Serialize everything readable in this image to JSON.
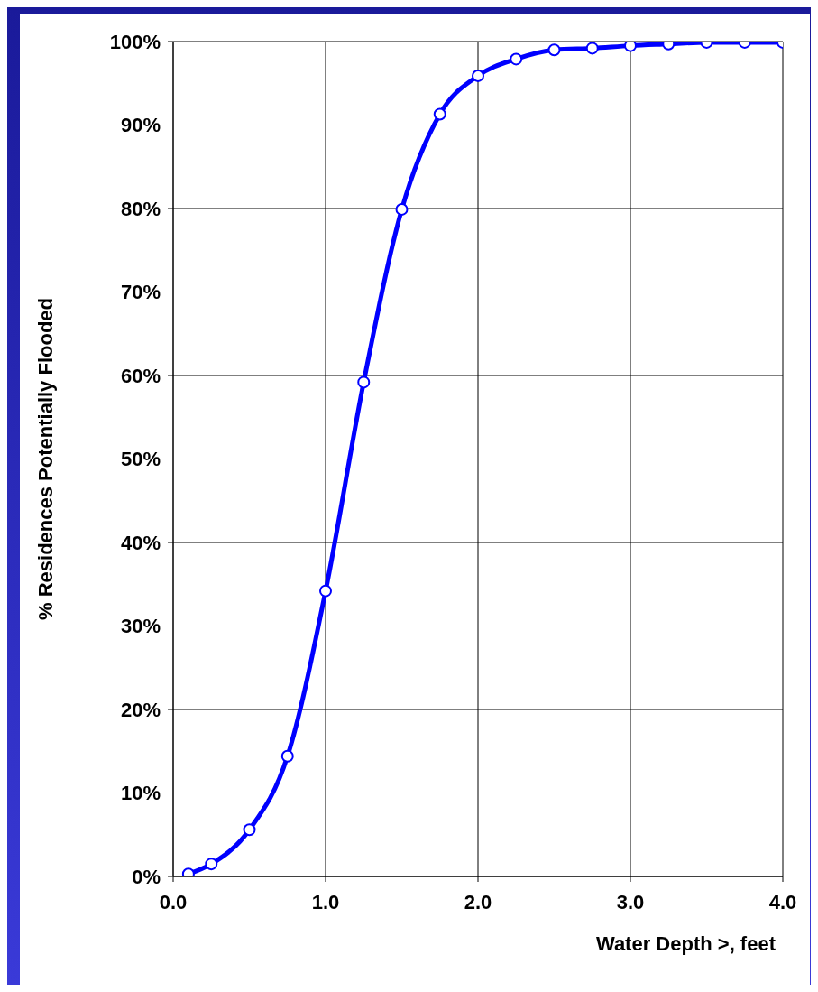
{
  "chart_data": {
    "type": "line",
    "xlabel": "Water Depth >, feet",
    "ylabel": "% Residences Potentially Flooded",
    "x": [
      0.1,
      0.25,
      0.5,
      0.75,
      1.0,
      1.25,
      1.5,
      1.75,
      2.0,
      2.25,
      2.5,
      2.75,
      3.0,
      3.25,
      3.5,
      3.75,
      4.0
    ],
    "series": [
      {
        "color": "#0000ff",
        "values": [
          0.3,
          1.5,
          5.6,
          14.4,
          34.2,
          59.2,
          79.9,
          91.3,
          95.9,
          97.9,
          99.0,
          99.2,
          99.5,
          99.7,
          99.9,
          99.9,
          99.9
        ]
      }
    ],
    "xlim": [
      0,
      4
    ],
    "xticks": [
      {
        "value": 0,
        "label": "0.0"
      },
      {
        "value": 1,
        "label": "1.0"
      },
      {
        "value": 2,
        "label": "2.0"
      },
      {
        "value": 3,
        "label": "3.0"
      },
      {
        "value": 4,
        "label": "4.0"
      }
    ],
    "ylim": [
      0,
      100
    ],
    "yticks": [
      {
        "value": 0,
        "label": "0%"
      },
      {
        "value": 10,
        "label": "10%"
      },
      {
        "value": 20,
        "label": "20%"
      },
      {
        "value": 30,
        "label": "30%"
      },
      {
        "value": 40,
        "label": "40%"
      },
      {
        "value": 50,
        "label": "50%"
      },
      {
        "value": 60,
        "label": "60%"
      },
      {
        "value": 70,
        "label": "70%"
      },
      {
        "value": 80,
        "label": "80%"
      },
      {
        "value": 90,
        "label": "90%"
      },
      {
        "value": 100,
        "label": "100%"
      }
    ],
    "grid": true,
    "marker": "circle",
    "line_style": "solid"
  }
}
